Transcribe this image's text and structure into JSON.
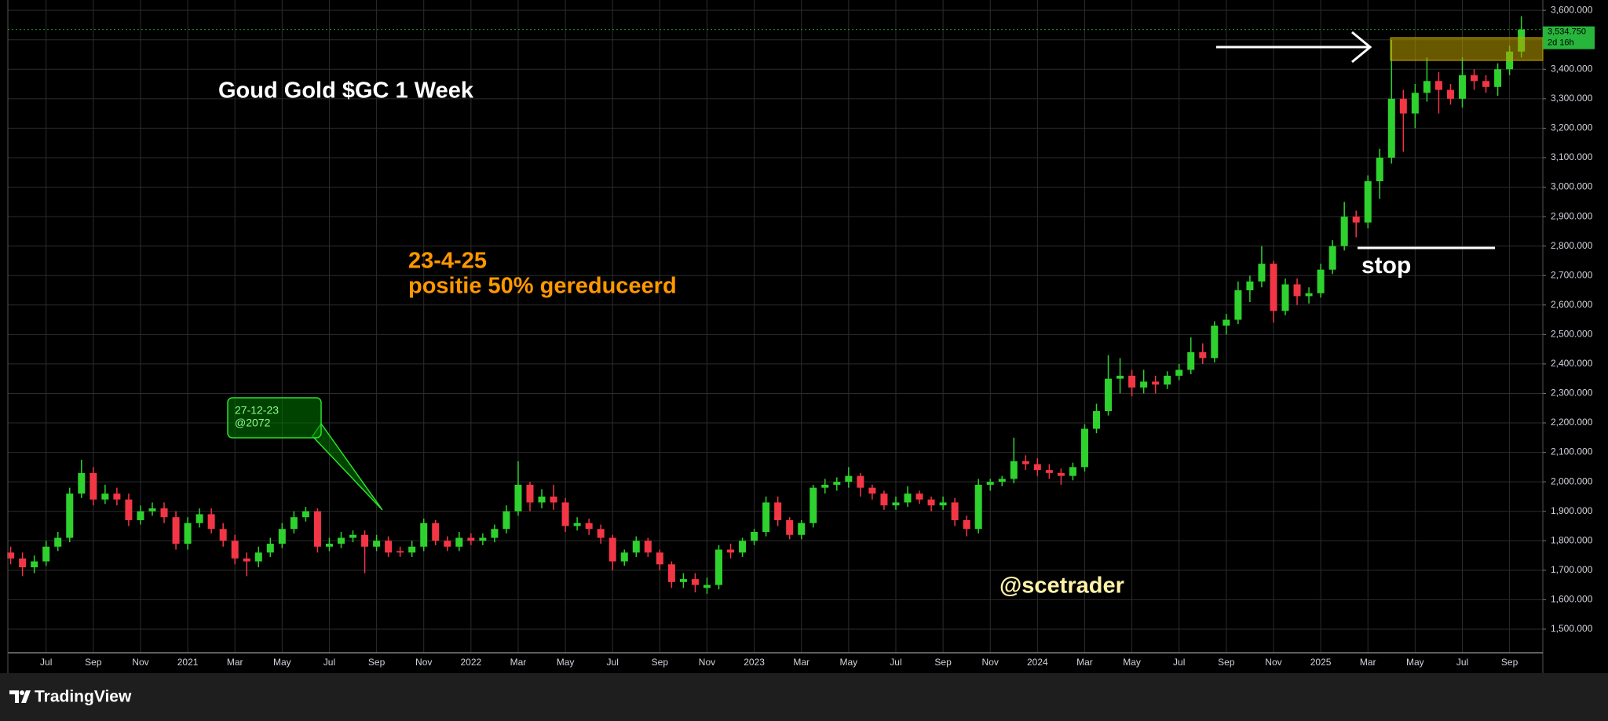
{
  "chart_data": {
    "type": "candlestick",
    "title": "Goud Gold $GC 1 Week",
    "annotations": {
      "date": "23-4-25",
      "action": "positie 50% gereduceerd",
      "stop": "stop",
      "author": "@scetrader",
      "callout_date": "27-12-23",
      "callout_price": "@2072"
    },
    "up_color": "#2ed12e",
    "down_color": "#f23645",
    "grid": true,
    "xlim": [
      4.38,
      69.41
    ],
    "xticks": [
      {
        "value": 6,
        "label": "Jul"
      },
      {
        "value": 8,
        "label": "Sep"
      },
      {
        "value": 10,
        "label": "Nov"
      },
      {
        "value": 12,
        "label": "2021"
      },
      {
        "value": 14,
        "label": "Mar"
      },
      {
        "value": 16,
        "label": "May"
      },
      {
        "value": 18,
        "label": "Jul"
      },
      {
        "value": 20,
        "label": "Sep"
      },
      {
        "value": 22,
        "label": "Nov"
      },
      {
        "value": 24,
        "label": "2022"
      },
      {
        "value": 26,
        "label": "Mar"
      },
      {
        "value": 28,
        "label": "May"
      },
      {
        "value": 30,
        "label": "Jul"
      },
      {
        "value": 32,
        "label": "Sep"
      },
      {
        "value": 34,
        "label": "Nov"
      },
      {
        "value": 36,
        "label": "2023"
      },
      {
        "value": 38,
        "label": "Mar"
      },
      {
        "value": 40,
        "label": "May"
      },
      {
        "value": 42,
        "label": "Jul"
      },
      {
        "value": 44,
        "label": "Sep"
      },
      {
        "value": 46,
        "label": "Nov"
      },
      {
        "value": 48,
        "label": "2024"
      },
      {
        "value": 50,
        "label": "Mar"
      },
      {
        "value": 52,
        "label": "May"
      },
      {
        "value": 54,
        "label": "Jul"
      },
      {
        "value": 56,
        "label": "Sep"
      },
      {
        "value": 58,
        "label": "Nov"
      },
      {
        "value": 60,
        "label": "2025"
      },
      {
        "value": 62,
        "label": "Mar"
      },
      {
        "value": 64,
        "label": "May"
      },
      {
        "value": 66,
        "label": "Jul"
      },
      {
        "value": 68,
        "label": "Sep"
      }
    ],
    "ylim": [
      1420,
      3635
    ],
    "yticks": [
      {
        "value": 1500,
        "label": "1,500.000"
      },
      {
        "value": 1600,
        "label": "1,600.000"
      },
      {
        "value": 1700,
        "label": "1,700.000"
      },
      {
        "value": 1800,
        "label": "1,800.000"
      },
      {
        "value": 1900,
        "label": "1,900.000"
      },
      {
        "value": 2000,
        "label": "2,000.000"
      },
      {
        "value": 2100,
        "label": "2,100.000"
      },
      {
        "value": 2200,
        "label": "2,200.000"
      },
      {
        "value": 2300,
        "label": "2,300.000"
      },
      {
        "value": 2400,
        "label": "2,400.000"
      },
      {
        "value": 2500,
        "label": "2,500.000"
      },
      {
        "value": 2600,
        "label": "2,600.000"
      },
      {
        "value": 2700,
        "label": "2,700.000"
      },
      {
        "value": 2800,
        "label": "2,800.000"
      },
      {
        "value": 2900,
        "label": "2,900.000"
      },
      {
        "value": 3000,
        "label": "3,000.000"
      },
      {
        "value": 3100,
        "label": "3,100.000"
      },
      {
        "value": 3200,
        "label": "3,200.000"
      },
      {
        "value": 3300,
        "label": "3,300.000"
      },
      {
        "value": 3400,
        "label": "3,400.000"
      },
      {
        "value": 3500,
        "label": "3,500.000"
      },
      {
        "value": 3600,
        "label": "3,600.000"
      }
    ],
    "last_price": {
      "value": 3534.75,
      "label": "3,534.750",
      "countdown": "2d 16h"
    },
    "x": [
      4.5,
      5,
      5.5,
      6,
      6.5,
      7,
      7.5,
      8,
      8.5,
      9,
      9.5,
      10,
      10.5,
      11,
      11.5,
      12,
      12.5,
      13,
      13.5,
      14,
      14.5,
      15,
      15.5,
      16,
      16.5,
      17,
      17.5,
      18,
      18.5,
      19,
      19.5,
      20,
      20.5,
      21,
      21.5,
      22,
      22.5,
      23,
      23.5,
      24,
      24.5,
      25,
      25.5,
      26,
      26.5,
      27,
      27.5,
      28,
      28.5,
      29,
      29.5,
      30,
      30.5,
      31,
      31.5,
      32,
      32.5,
      33,
      33.5,
      34,
      34.5,
      35,
      35.5,
      36,
      36.5,
      37,
      37.5,
      38,
      38.5,
      39,
      39.5,
      40,
      40.5,
      41,
      41.5,
      42,
      42.5,
      43,
      43.5,
      44,
      44.5,
      45,
      45.5,
      46,
      46.5,
      47,
      47.5,
      48,
      48.5,
      49,
      49.5,
      50,
      50.5,
      51,
      51.5,
      52,
      52.5,
      53,
      53.5,
      54,
      54.5,
      55,
      55.5,
      56,
      56.5,
      57,
      57.5,
      58,
      58.5,
      59,
      59.5,
      60,
      60.5,
      61,
      61.5,
      62,
      62.5,
      63,
      63.5,
      64,
      64.5,
      65,
      65.5,
      66,
      66.5,
      67,
      67.5,
      68,
      68.5
    ],
    "open": [
      1760,
      1740,
      1710,
      1730,
      1780,
      1810,
      1960,
      2030,
      1940,
      1960,
      1940,
      1870,
      1900,
      1910,
      1880,
      1790,
      1860,
      1890,
      1840,
      1800,
      1740,
      1730,
      1760,
      1790,
      1840,
      1880,
      1900,
      1780,
      1790,
      1810,
      1820,
      1780,
      1800,
      1765,
      1760,
      1780,
      1860,
      1800,
      1780,
      1810,
      1800,
      1810,
      1840,
      1900,
      1990,
      1930,
      1950,
      1930,
      1850,
      1860,
      1840,
      1810,
      1730,
      1760,
      1800,
      1760,
      1720,
      1660,
      1670,
      1640,
      1650,
      1770,
      1760,
      1800,
      1830,
      1930,
      1870,
      1820,
      1860,
      1980,
      1990,
      2000,
      2020,
      1980,
      1960,
      1920,
      1930,
      1960,
      1940,
      1920,
      1930,
      1870,
      1840,
      1990,
      2000,
      2010,
      2070,
      2060,
      2040,
      2030,
      2020,
      2050,
      2180,
      2240,
      2350,
      2360,
      2320,
      2340,
      2330,
      2360,
      2380,
      2440,
      2420,
      2530,
      2550,
      2650,
      2680,
      2740,
      2580,
      2670,
      2630,
      2640,
      2720,
      2800,
      2900,
      2880,
      3020,
      3100,
      3300,
      3250,
      3320,
      3360,
      3330,
      3300,
      3380,
      3360,
      3340,
      3400,
      3460
    ],
    "high": [
      1780,
      1760,
      1750,
      1800,
      1830,
      1980,
      2075,
      2050,
      1990,
      1980,
      1960,
      1920,
      1930,
      1930,
      1900,
      1880,
      1910,
      1910,
      1860,
      1820,
      1760,
      1780,
      1810,
      1860,
      1900,
      1915,
      1910,
      1810,
      1830,
      1835,
      1835,
      1820,
      1815,
      1780,
      1800,
      1875,
      1870,
      1815,
      1830,
      1825,
      1825,
      1855,
      1920,
      2070,
      2000,
      1975,
      1990,
      1945,
      1880,
      1875,
      1855,
      1820,
      1770,
      1815,
      1810,
      1770,
      1730,
      1690,
      1690,
      1675,
      1785,
      1790,
      1810,
      1840,
      1950,
      1950,
      1880,
      1870,
      1990,
      2010,
      2015,
      2050,
      2030,
      1990,
      1970,
      1950,
      1985,
      1970,
      1950,
      1950,
      1945,
      1885,
      2010,
      2010,
      2020,
      2150,
      2090,
      2080,
      2060,
      2045,
      2065,
      2195,
      2265,
      2430,
      2420,
      2380,
      2380,
      2360,
      2375,
      2400,
      2490,
      2470,
      2545,
      2570,
      2680,
      2700,
      2800,
      2750,
      2690,
      2690,
      2660,
      2740,
      2820,
      2950,
      2920,
      3040,
      3130,
      3500,
      3330,
      3350,
      3440,
      3390,
      3350,
      3440,
      3400,
      3380,
      3420,
      3480,
      3580
    ],
    "low": [
      1720,
      1680,
      1690,
      1715,
      1765,
      1795,
      1945,
      1920,
      1925,
      1920,
      1850,
      1855,
      1885,
      1860,
      1770,
      1770,
      1845,
      1825,
      1780,
      1720,
      1680,
      1710,
      1745,
      1775,
      1825,
      1865,
      1760,
      1765,
      1775,
      1795,
      1690,
      1765,
      1745,
      1745,
      1745,
      1765,
      1785,
      1765,
      1765,
      1785,
      1785,
      1795,
      1825,
      1885,
      1900,
      1910,
      1905,
      1830,
      1835,
      1820,
      1790,
      1700,
      1715,
      1745,
      1745,
      1700,
      1640,
      1640,
      1625,
      1620,
      1635,
      1740,
      1745,
      1785,
      1815,
      1850,
      1805,
      1805,
      1845,
      1960,
      1970,
      1980,
      1950,
      1940,
      1905,
      1905,
      1915,
      1925,
      1900,
      1905,
      1850,
      1815,
      1825,
      1970,
      1985,
      1995,
      2040,
      2020,
      2010,
      1990,
      2005,
      2035,
      2165,
      2225,
      2300,
      2290,
      2300,
      2300,
      2315,
      2345,
      2365,
      2400,
      2405,
      2500,
      2535,
      2610,
      2660,
      2540,
      2565,
      2600,
      2605,
      2625,
      2705,
      2785,
      2830,
      2860,
      2960,
      3080,
      3120,
      3200,
      3290,
      3250,
      3280,
      3270,
      3330,
      3320,
      3310,
      3380,
      3440
    ],
    "close": [
      1740,
      1710,
      1730,
      1780,
      1810,
      1960,
      2030,
      1940,
      1960,
      1940,
      1870,
      1900,
      1910,
      1880,
      1790,
      1860,
      1890,
      1840,
      1800,
      1740,
      1730,
      1760,
      1790,
      1840,
      1880,
      1900,
      1780,
      1790,
      1810,
      1820,
      1780,
      1800,
      1760,
      1760,
      1780,
      1860,
      1800,
      1780,
      1810,
      1800,
      1810,
      1840,
      1900,
      1990,
      1930,
      1950,
      1930,
      1850,
      1860,
      1840,
      1810,
      1730,
      1760,
      1800,
      1760,
      1720,
      1660,
      1670,
      1650,
      1650,
      1770,
      1760,
      1800,
      1830,
      1930,
      1870,
      1820,
      1860,
      1980,
      1990,
      2000,
      2020,
      1980,
      1960,
      1920,
      1930,
      1960,
      1940,
      1920,
      1930,
      1870,
      1840,
      1990,
      2000,
      2010,
      2070,
      2060,
      2040,
      2030,
      2020,
      2050,
      2180,
      2240,
      2350,
      2360,
      2320,
      2340,
      2330,
      2360,
      2380,
      2440,
      2420,
      2530,
      2550,
      2650,
      2680,
      2740,
      2580,
      2670,
      2630,
      2640,
      2720,
      2800,
      2900,
      2880,
      3020,
      3100,
      3300,
      3250,
      3320,
      3360,
      3330,
      3300,
      3380,
      3360,
      3340,
      3400,
      3460,
      3535
    ]
  },
  "footer": {
    "brand": "TradingView"
  }
}
